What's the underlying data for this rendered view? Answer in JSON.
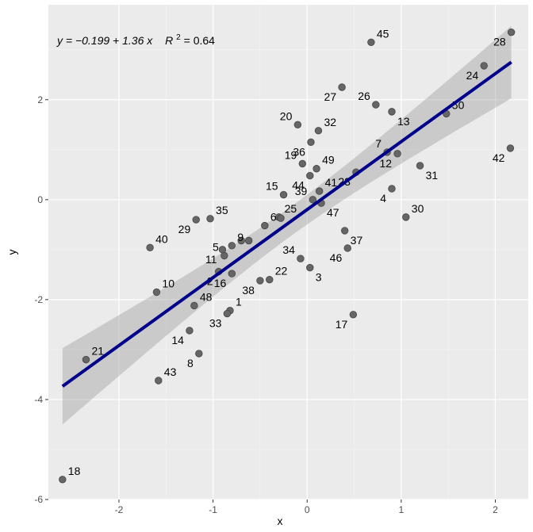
{
  "chart_data": {
    "type": "scatter",
    "title": "",
    "xlabel": "x",
    "ylabel": "y",
    "xlim": [
      -2.75,
      2.35
    ],
    "ylim": [
      -6.0,
      3.9
    ],
    "x_ticks": [
      -2,
      -1,
      0,
      1,
      2
    ],
    "x_tick_labels": [
      "-2",
      "-1",
      "0",
      "1",
      "2"
    ],
    "y_ticks": [
      -6,
      -4,
      -2,
      0,
      2
    ],
    "y_tick_labels": [
      "-6",
      "-4",
      "-2",
      "0",
      "2"
    ],
    "grid": true,
    "annotation": {
      "equation": "y = −0.199 + 1.36 x",
      "r2_prefix": "R",
      "r2_suffix": " = 0.64",
      "position": "top-left"
    },
    "regression": {
      "intercept": -0.199,
      "slope": 1.36,
      "color": "#00008b",
      "band_color": "#999999"
    },
    "points": [
      {
        "id": "1",
        "x": -0.82,
        "y": -2.22,
        "label_dx": 1,
        "label_dy": 0
      },
      {
        "id": "2",
        "x": -0.94,
        "y": -1.44,
        "label_dx": -1,
        "label_dy": 1
      },
      {
        "id": "3",
        "x": 0.03,
        "y": -1.36,
        "label_dx": 1,
        "label_dy": 1
      },
      {
        "id": "4",
        "x": 0.9,
        "y": 0.22,
        "label_dx": -1,
        "label_dy": 1
      },
      {
        "id": "5",
        "x": -0.88,
        "y": -1.12,
        "label_dx": -1,
        "label_dy": -1
      },
      {
        "id": "6",
        "x": -0.45,
        "y": -0.52,
        "label_dx": 1,
        "label_dy": -1
      },
      {
        "id": "7",
        "x": 0.85,
        "y": 0.95,
        "label_dx": -1,
        "label_dy": -1
      },
      {
        "id": "8",
        "x": -1.15,
        "y": -3.08,
        "label_dx": -1,
        "label_dy": 1
      },
      {
        "id": "9",
        "x": -0.8,
        "y": -0.92,
        "label_dx": 1,
        "label_dy": -1
      },
      {
        "id": "10",
        "x": -1.6,
        "y": -1.85,
        "label_dx": 1,
        "label_dy": -1
      },
      {
        "id": "11",
        "x": -0.9,
        "y": -1.0,
        "label_dx": -1,
        "label_dy": 1
      },
      {
        "id": "12",
        "x": 0.96,
        "y": 0.92,
        "label_dx": -1,
        "label_dy": 1
      },
      {
        "id": "13",
        "x": 0.9,
        "y": 1.76,
        "label_dx": 1,
        "label_dy": 1
      },
      {
        "id": "14",
        "x": -1.25,
        "y": -2.62,
        "label_dx": -1,
        "label_dy": 1
      },
      {
        "id": "15",
        "x": -0.25,
        "y": 0.1,
        "label_dx": -1,
        "label_dy": -1
      },
      {
        "id": "16",
        "x": -0.8,
        "y": -1.48,
        "label_dx": -1,
        "label_dy": 1
      },
      {
        "id": "17",
        "x": 0.49,
        "y": -2.3,
        "label_dx": -1,
        "label_dy": 1
      },
      {
        "id": "18",
        "x": -2.6,
        "y": -5.6,
        "label_dx": 1,
        "label_dy": -1
      },
      {
        "id": "19",
        "x": -0.05,
        "y": 0.72,
        "label_dx": -1,
        "label_dy": -1
      },
      {
        "id": "20",
        "x": -0.1,
        "y": 1.5,
        "label_dx": -1,
        "label_dy": -1
      },
      {
        "id": "21",
        "x": -2.35,
        "y": -3.2,
        "label_dx": 1,
        "label_dy": -1
      },
      {
        "id": "22",
        "x": -0.4,
        "y": -1.6,
        "label_dx": 1,
        "label_dy": -1
      },
      {
        "id": "23",
        "x": 0.52,
        "y": 0.55,
        "label_dx": -1,
        "label_dy": 1
      },
      {
        "id": "24",
        "x": 1.88,
        "y": 2.68,
        "label_dx": -1,
        "label_dy": 1
      },
      {
        "id": "25",
        "x": -0.3,
        "y": -0.35,
        "label_dx": 1,
        "label_dy": -1
      },
      {
        "id": "26",
        "x": 0.73,
        "y": 1.9,
        "label_dx": -1,
        "label_dy": -1
      },
      {
        "id": "27",
        "x": 0.37,
        "y": 2.25,
        "label_dx": -1,
        "label_dy": 1
      },
      {
        "id": "28",
        "x": 2.17,
        "y": 3.35,
        "label_dx": -1,
        "label_dy": 1
      },
      {
        "id": "29",
        "x": -1.18,
        "y": -0.4,
        "label_dx": -1,
        "label_dy": 1
      },
      {
        "id": "30",
        "x": 1.05,
        "y": -0.35,
        "label_dx": 1,
        "label_dy": -1
      },
      {
        "id": "31",
        "x": 1.2,
        "y": 0.68,
        "label_dx": 1,
        "label_dy": 1
      },
      {
        "id": "32",
        "x": 0.12,
        "y": 1.38,
        "label_dx": 1,
        "label_dy": -1
      },
      {
        "id": "33",
        "x": -0.85,
        "y": -2.28,
        "label_dx": -1,
        "label_dy": 1
      },
      {
        "id": "34",
        "x": -0.07,
        "y": -1.18,
        "label_dx": -1,
        "label_dy": -1
      },
      {
        "id": "35",
        "x": -1.03,
        "y": -0.38,
        "label_dx": 1,
        "label_dy": -1
      },
      {
        "id": "36",
        "x": 0.04,
        "y": 1.15,
        "label_dx": -1,
        "label_dy": 1
      },
      {
        "id": "37",
        "x": 0.4,
        "y": -0.62,
        "label_dx": 1,
        "label_dy": 1
      },
      {
        "id": "38",
        "x": -0.5,
        "y": -1.62,
        "label_dx": -1,
        "label_dy": 1
      },
      {
        "id": "39",
        "x": 0.06,
        "y": 0.0,
        "label_dx": -1,
        "label_dy": -1
      },
      {
        "id": "40",
        "x": -1.67,
        "y": -0.96,
        "label_dx": 1,
        "label_dy": -1
      },
      {
        "id": "41",
        "x": 0.13,
        "y": 0.17,
        "label_dx": 1,
        "label_dy": -1
      },
      {
        "id": "42",
        "x": 2.16,
        "y": 1.03,
        "label_dx": -1,
        "label_dy": 1
      },
      {
        "id": "43",
        "x": -1.58,
        "y": -3.62,
        "label_dx": 1,
        "label_dy": -1
      },
      {
        "id": "44",
        "x": 0.03,
        "y": 0.48,
        "label_dx": -1,
        "label_dy": 1
      },
      {
        "id": "45",
        "x": 0.68,
        "y": 3.15,
        "label_dx": 1,
        "label_dy": -1
      },
      {
        "id": "46",
        "x": 0.43,
        "y": -0.97,
        "label_dx": -1,
        "label_dy": 1
      },
      {
        "id": "47",
        "x": 0.15,
        "y": -0.07,
        "label_dx": 1,
        "label_dy": 1
      },
      {
        "id": "48",
        "x": -1.2,
        "y": -2.12,
        "label_dx": 1,
        "label_dy": -1
      },
      {
        "id": "49",
        "x": 0.1,
        "y": 0.62,
        "label_dx": 1,
        "label_dy": -1
      },
      {
        "id": "50",
        "x": 1.48,
        "y": 1.72,
        "label_dx": 1,
        "label_dy": -1
      },
      {
        "id": "",
        "x": -0.62,
        "y": -0.82
      },
      {
        "id": "",
        "x": -0.28,
        "y": -0.37
      },
      {
        "id": "",
        "x": -0.7,
        "y": -0.82
      }
    ]
  }
}
